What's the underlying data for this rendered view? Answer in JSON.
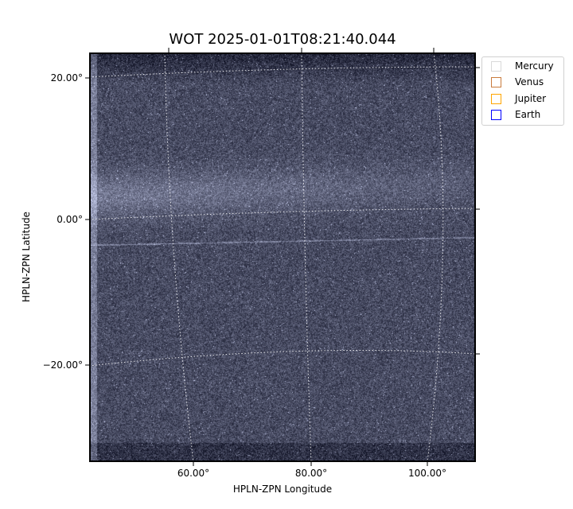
{
  "chart_data": {
    "type": "image",
    "title": "WOT 2025-01-01T08:21:40.044",
    "xlabel": "HPLN-ZPN Longitude",
    "ylabel": "HPLN-ZPN Latitude",
    "x_ticks": [
      "60.00°",
      "80.00°",
      "100.00°"
    ],
    "y_ticks": [
      "20.00°",
      "0.00°",
      "−20.00°"
    ],
    "grid": true,
    "colormap": "gray-blue",
    "legend": {
      "placement": "outside-top-right",
      "entries": [
        {
          "name": "Mercury",
          "color": "#d9d9d9"
        },
        {
          "name": "Venus",
          "color": "#c97b3d"
        },
        {
          "name": "Jupiter",
          "color": "#ffa500"
        },
        {
          "name": "Earth",
          "color": "#0000ff"
        }
      ]
    }
  }
}
